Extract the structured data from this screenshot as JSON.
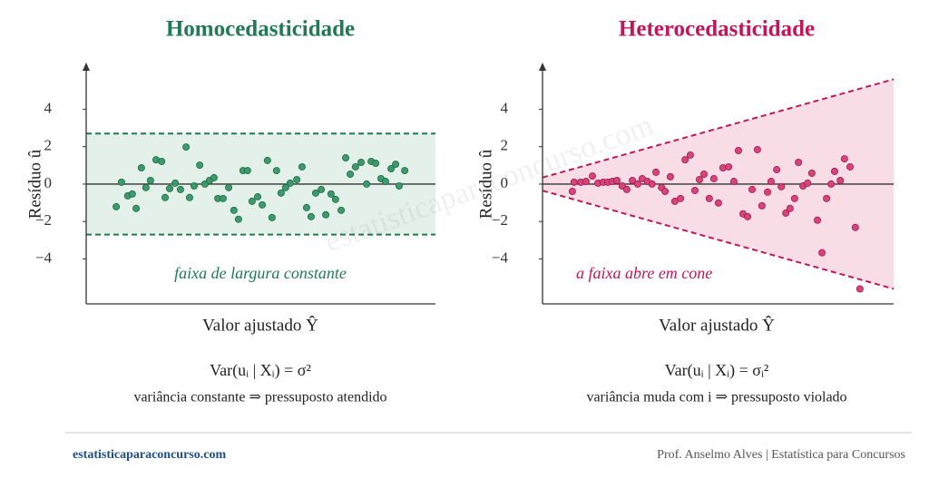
{
  "chart_data": [
    {
      "type": "scatter",
      "title": "Homocedasticidade",
      "title_color": "#1f7a55",
      "xlabel": "Valor ajustado Ŷ",
      "ylabel": "Resíduo û",
      "color": "#3c9a6c",
      "edge": "#1f6b48",
      "band_fill": "#e4f1ea",
      "band_color": "#1f7a55",
      "annotation": "faixa de largura constante",
      "formula": "Var(uᵢ | Xᵢ) = σ²",
      "caption": "variância constante ⇒ pressuposto atendido",
      "xlim": [
        0,
        10
      ],
      "ylim": [
        -6.4,
        6.2
      ],
      "yticks": [
        {
          "value": -4,
          "label": "−4"
        },
        {
          "value": -2,
          "label": "−2"
        },
        0,
        2,
        4
      ],
      "band": {
        "upper": [
          2.7,
          2.7
        ],
        "lower": [
          -2.7,
          -2.7
        ]
      },
      "x": [
        0.86,
        1.01,
        1.19,
        1.32,
        1.43,
        1.58,
        1.71,
        1.84,
        2.0,
        2.16,
        2.26,
        2.39,
        2.55,
        2.7,
        2.86,
        2.96,
        3.09,
        3.25,
        3.4,
        3.53,
        3.66,
        3.77,
        3.92,
        4.08,
        4.23,
        4.36,
        4.49,
        4.62,
        4.75,
        4.91,
        5.04,
        5.19,
        5.32,
        5.45,
        5.58,
        5.71,
        5.84,
        6.03,
        6.18,
        6.31,
        6.44,
        6.57,
        6.73,
        6.86,
        7.01,
        7.14,
        7.3,
        7.43,
        7.56,
        7.71,
        7.87,
        8.03,
        8.16,
        8.29,
        8.44,
        8.57,
        8.73,
        8.86,
        8.96,
        9.12
      ],
      "values": [
        -1.21,
        0.1,
        -0.63,
        -0.53,
        -1.3,
        0.87,
        -0.19,
        0.19,
        1.3,
        1.21,
        -0.72,
        -0.24,
        0.05,
        -0.29,
        1.98,
        -0.72,
        -0.1,
        1.01,
        0,
        0.19,
        0.34,
        -0.77,
        -0.77,
        -0.19,
        -1.4,
        -1.88,
        0.72,
        0.72,
        -0.92,
        -0.68,
        -1.11,
        1.26,
        -1.79,
        0.72,
        -0.48,
        -0.19,
        0.05,
        0.24,
        0.92,
        -1.26,
        -1.74,
        -0.48,
        -0.29,
        -1.64,
        -0.53,
        -0.82,
        -1.4,
        1.4,
        0.53,
        0.92,
        1.16,
        0,
        1.21,
        1.11,
        0.29,
        0.14,
        0.82,
        1.06,
        -0.1,
        0.72
      ]
    },
    {
      "type": "scatter",
      "title": "Heterocedasticidade",
      "title_color": "#c0175a",
      "xlabel": "Valor ajustado Ŷ",
      "ylabel": "Resíduo û",
      "color": "#d6457a",
      "edge": "#a3184e",
      "band_fill": "#f8dde6",
      "band_color": "#c0175a",
      "annotation": "a faixa abre em cone",
      "formula": "Var(uᵢ | Xᵢ) = σᵢ²",
      "caption": "variância muda com i ⇒ pressuposto violado",
      "xlim": [
        0,
        10
      ],
      "ylim": [
        -6.4,
        6.2
      ],
      "yticks": [
        {
          "value": -4,
          "label": "−4"
        },
        {
          "value": -2,
          "label": "−2"
        },
        0,
        2,
        4
      ],
      "band": {
        "upper": [
          0.35,
          5.6
        ],
        "lower": [
          -0.35,
          -5.6
        ]
      },
      "x": [
        0.85,
        0.9,
        1.09,
        1.24,
        1.42,
        1.58,
        1.73,
        1.86,
        1.99,
        2.12,
        2.27,
        2.4,
        2.56,
        2.71,
        2.84,
        2.99,
        3.12,
        3.23,
        3.39,
        3.49,
        3.64,
        3.77,
        3.93,
        4.06,
        4.21,
        4.34,
        4.47,
        4.6,
        4.75,
        4.88,
        5.01,
        5.14,
        5.3,
        5.45,
        5.58,
        5.71,
        5.84,
        5.97,
        6.12,
        6.25,
        6.41,
        6.51,
        6.67,
        6.8,
        6.93,
        7.05,
        7.18,
        7.29,
        7.42,
        7.55,
        7.67,
        7.83,
        7.96,
        8.09,
        8.22,
        8.32,
        8.48,
        8.6,
        8.76,
        8.91,
        9.04
      ],
      "values": [
        -0.39,
        0.1,
        0.1,
        0.14,
        0.43,
        0.05,
        0.1,
        0.1,
        0.14,
        0.19,
        -0.1,
        -0.29,
        0.19,
        0,
        0.29,
        0.14,
        0,
        0.63,
        -0.19,
        -0.39,
        0.39,
        -0.92,
        -0.77,
        1.3,
        1.55,
        -0.34,
        0.24,
        0.53,
        -0.77,
        0.29,
        -1.01,
        0.87,
        0.92,
        0.14,
        1.79,
        -1.59,
        -1.74,
        -0.29,
        1.84,
        -1.16,
        -0.43,
        0.14,
        0.77,
        -0.14,
        -1.55,
        -1.3,
        -0.77,
        1.16,
        -0.1,
        0.05,
        0.58,
        -1.93,
        -3.67,
        -0.77,
        0,
        0.68,
        0.19,
        1.35,
        0.92,
        -2.32,
        -5.6
      ]
    }
  ],
  "watermark": "estatisticaparaconcurso.com",
  "footer": {
    "left": "estatisticaparaconcurso.com",
    "right": "Prof. Anselmo Alves | Estatística para Concursos"
  }
}
